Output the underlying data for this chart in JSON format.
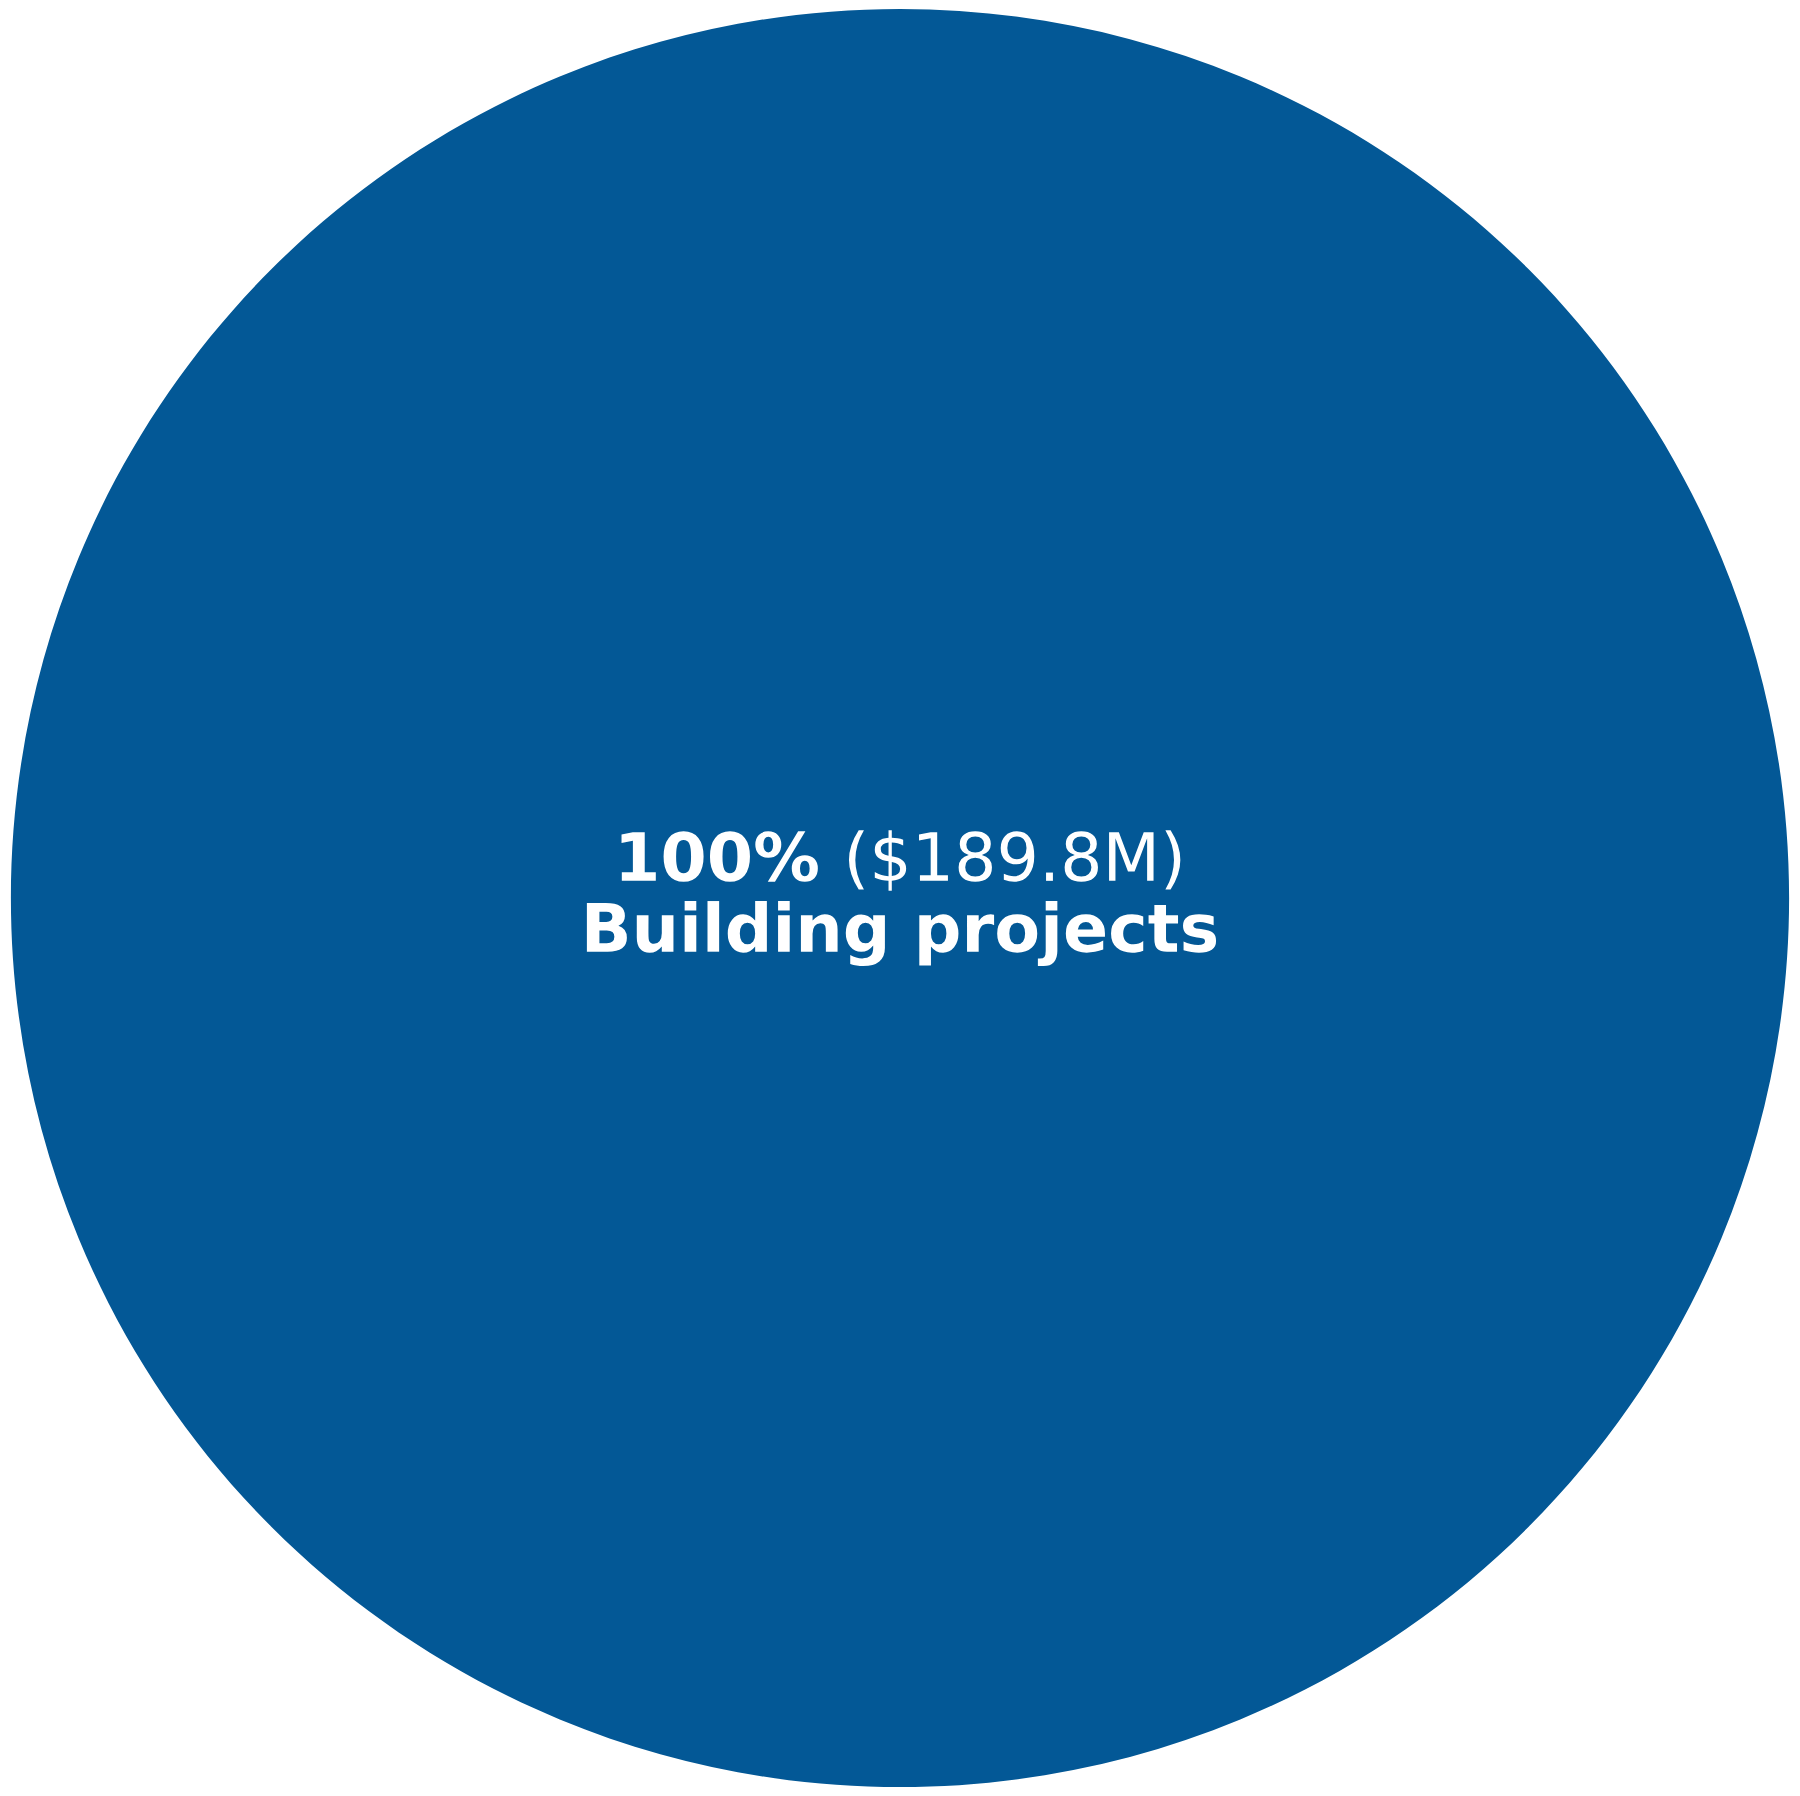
{
  "chart_data": {
    "type": "pie",
    "categories": [
      "Building projects"
    ],
    "values": [
      100
    ],
    "value_labels": [
      "100% ($189.8M)"
    ],
    "colors": [
      "#035896"
    ]
  }
}
